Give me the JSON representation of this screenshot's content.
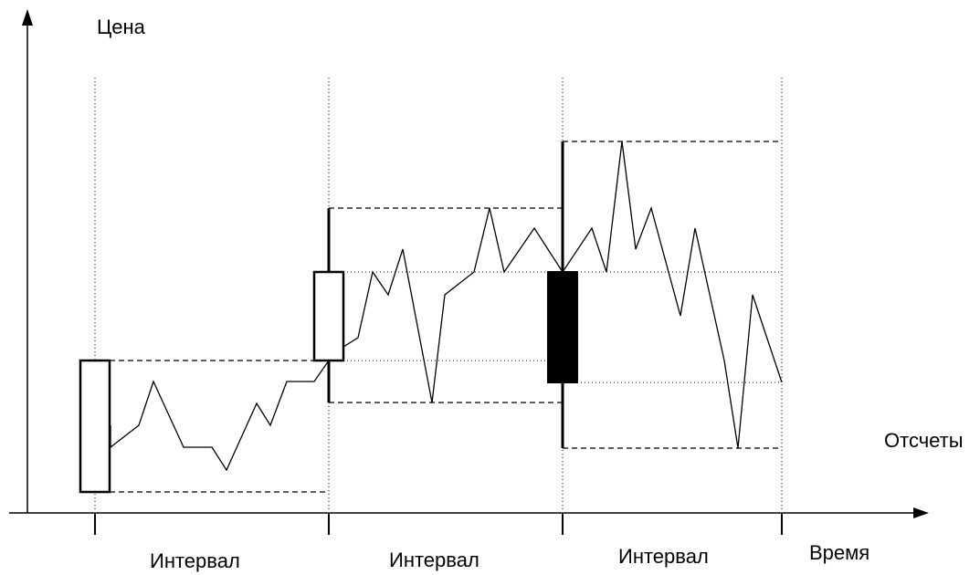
{
  "labels": {
    "y_axis": "Цена",
    "x_axis": "Время",
    "samples": "Отсчеты",
    "interval_1": "Интервал",
    "interval_2": "Интервал",
    "interval_3": "Интервал"
  },
  "colors": {
    "line": "#000000",
    "bearish_body": "#000000",
    "bullish_body": "#ffffff"
  }
}
